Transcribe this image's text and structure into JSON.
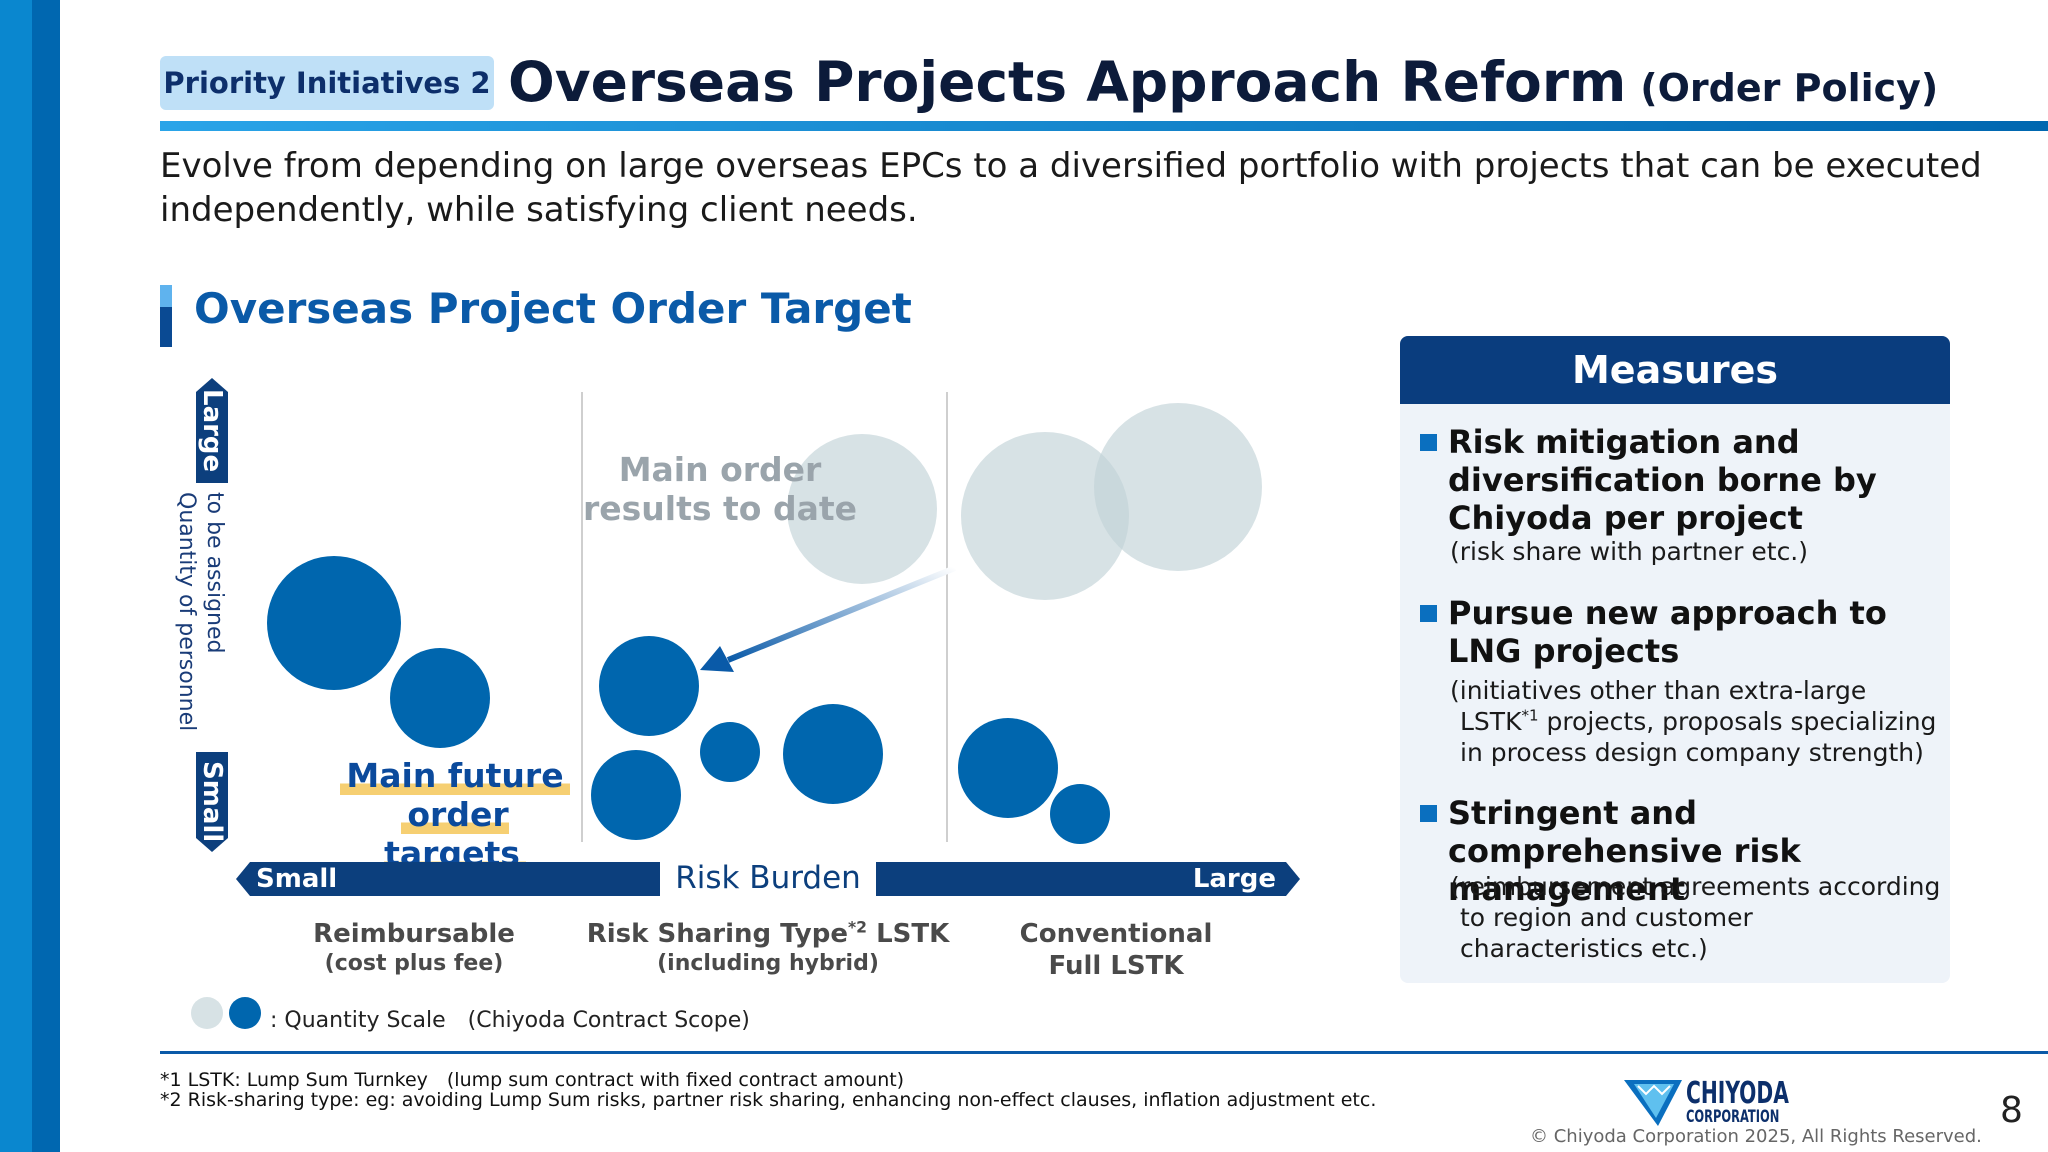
{
  "header": {
    "tag": "Priority Initiatives 2",
    "title": "Overseas Projects Approach Reform",
    "title_sub": "(Order Policy)",
    "intro": "Evolve from depending on large overseas EPCs to a diversified portfolio with projects that can be executed independently, while satisfying client needs."
  },
  "section": {
    "title": "Overseas Project Order Target"
  },
  "chart": {
    "y_axis_top": "Large",
    "y_axis_bottom": "Small",
    "y_axis_label_1": "Quantity of personnel",
    "y_axis_label_2": "to be assigned",
    "x_axis_left": "Small",
    "x_axis_right": "Large",
    "x_axis_label": "Risk Burden",
    "ghost_label": "Main order results to date",
    "target_label_1": "Main future",
    "target_label_2": "order targets",
    "categories": [
      {
        "name": "Reimbursable",
        "sub": "(cost plus fee)"
      },
      {
        "name_pre": "Risk Sharing Type",
        "sup": "*2",
        "name_post": " LSTK",
        "sub": "(including hybrid)"
      },
      {
        "name": "Conventional",
        "sub": "Full LSTK"
      }
    ],
    "legend": ": Quantity Scale　(Chiyoda Contract Scope)",
    "colors": {
      "target": "#0066ae",
      "results": "#c1d2d7"
    }
  },
  "measures": {
    "title": "Measures",
    "items": [
      {
        "title": "Risk mitigation and diversification borne by Chiyoda per project",
        "note": "(risk share with partner etc.)"
      },
      {
        "title": "Pursue new approach to LNG projects",
        "note_1": "(initiatives other than extra-large",
        "note_2_pre": "LSTK",
        "note_2_sup": "*1",
        "note_2_post": " projects, proposals specializing",
        "note_3": "in process design company strength)"
      },
      {
        "title": "Stringent and comprehensive risk management",
        "note_1": "(reimbursement agreements according",
        "note_2": "to region and customer",
        "note_3": "characteristics etc.)"
      }
    ]
  },
  "footer": {
    "note1": "*1 LSTK: Lump Sum Turnkey　(lump sum contract with fixed contract amount)",
    "note2": "*2 Risk-sharing type: eg: avoiding Lump Sum risks, partner risk sharing, enhancing non-effect clauses, inflation adjustment etc.",
    "logo_line1": "CHIYODA",
    "logo_line2": "CORPORATION",
    "copyright": "© Chiyoda Corporation 2025, All Rights Reserved.",
    "page_number": "8"
  }
}
